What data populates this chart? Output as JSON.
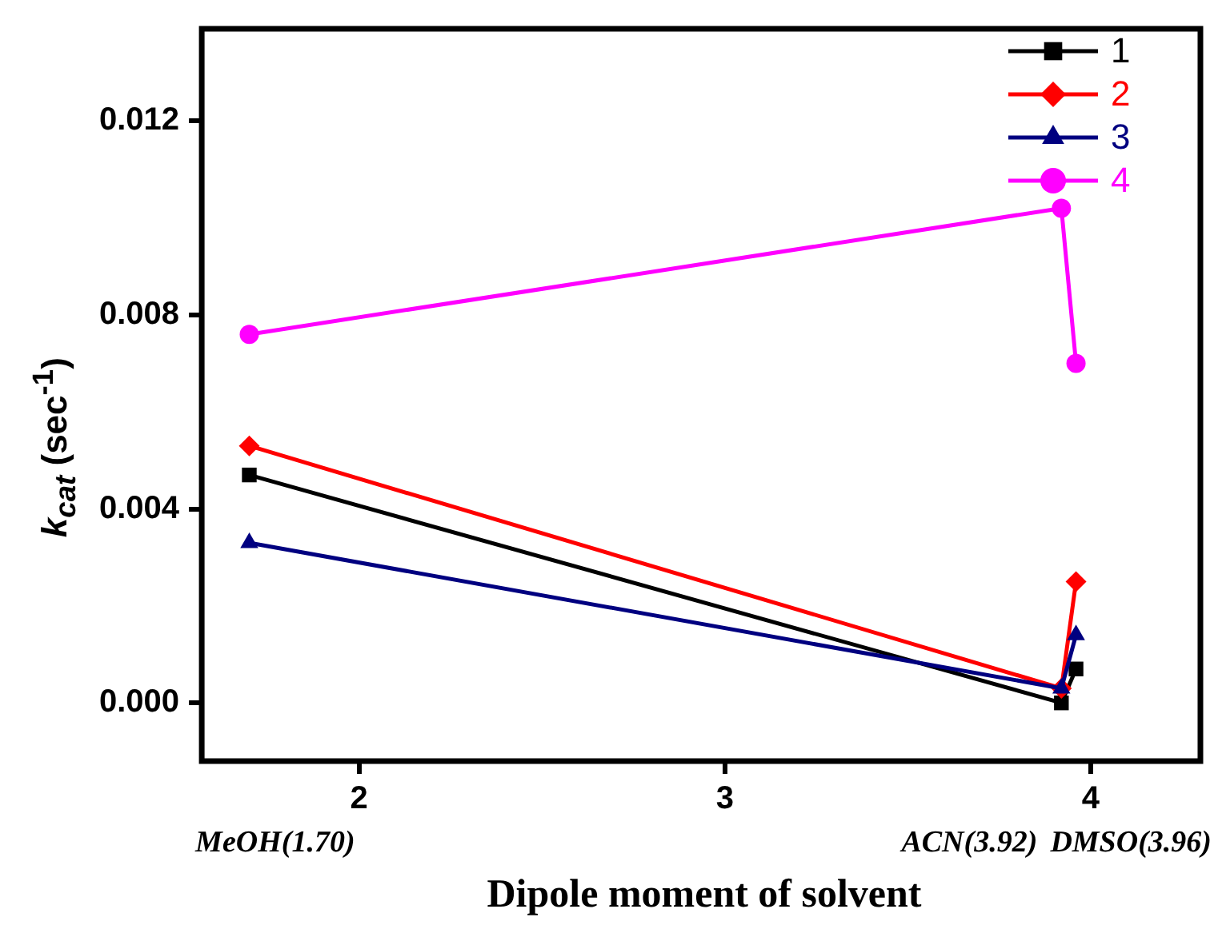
{
  "chart_data": {
    "type": "line",
    "xlabel": "Dipole moment of solvent",
    "ylabel": "k$_{cat}$ (sec$^{-1}$)",
    "xlim": [
      1.57,
      4.3
    ],
    "xticks": [
      2,
      3,
      4
    ],
    "ylim": [
      -0.0012,
      0.0139
    ],
    "yticks": [
      {
        "value": 0,
        "label": "0.000"
      },
      {
        "value": 0.004,
        "label": "0.004"
      },
      {
        "value": 0.008,
        "label": "0.008"
      },
      {
        "value": 0.012,
        "label": "0.012"
      }
    ],
    "x": [
      1.7,
      3.92,
      3.96
    ],
    "series": [
      {
        "name": "1",
        "color": "#000000",
        "marker": "square",
        "values": [
          0.0047,
          0.0,
          0.0007
        ]
      },
      {
        "name": "2",
        "color": "#ff0000",
        "marker": "diamond",
        "values": [
          0.0053,
          0.0003,
          0.0025
        ]
      },
      {
        "name": "3",
        "color": "#000080",
        "marker": "triangle",
        "values": [
          0.0033,
          0.0003,
          0.0014
        ]
      },
      {
        "name": "4",
        "color": "#ff00ff",
        "marker": "circle",
        "values": [
          0.0076,
          0.0102,
          0.007
        ]
      }
    ],
    "annotations": [
      "MeOH(1.70)",
      "ACN(3.92)",
      "DMSO(3.96)"
    ],
    "legend": "top right",
    "grid": false,
    "line_style": "solid"
  }
}
